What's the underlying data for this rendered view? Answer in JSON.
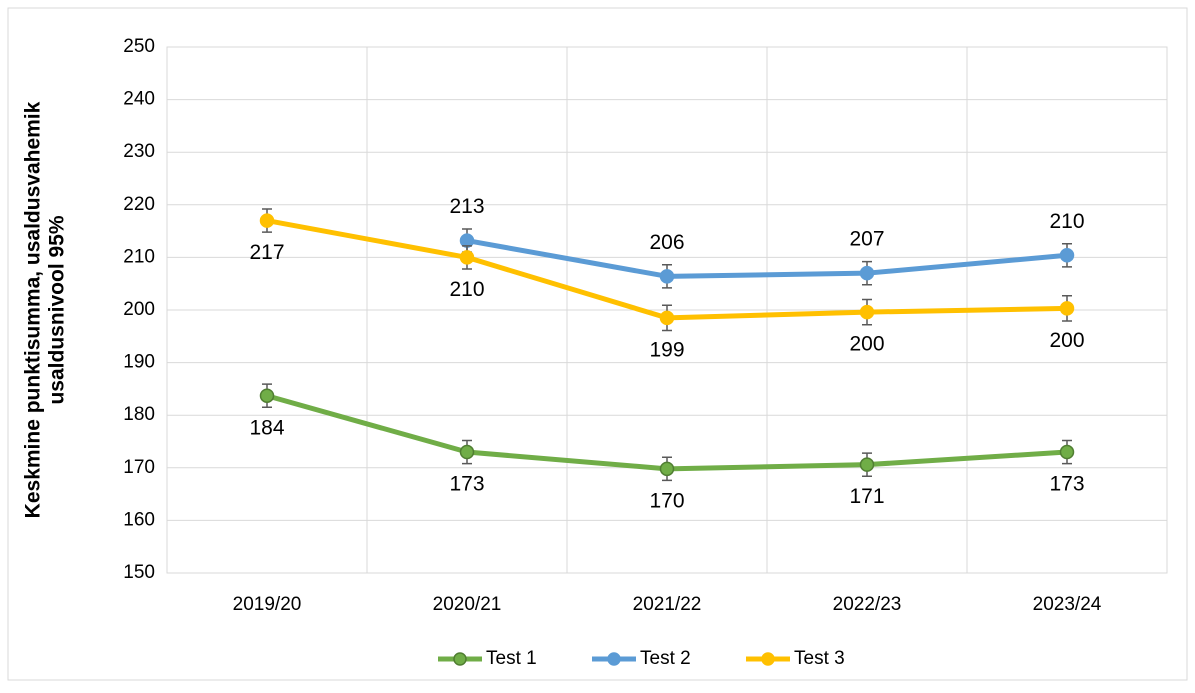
{
  "chart_data": {
    "type": "line",
    "ylabel": [
      "Keskmine punktisumma, usaldusvahemik",
      "usaldusnivool 95%"
    ],
    "categories": [
      "2019/20",
      "2020/21",
      "2021/22",
      "2022/23",
      "2023/24"
    ],
    "ylim": [
      150,
      250
    ],
    "yticks": [
      150,
      160,
      170,
      180,
      190,
      200,
      210,
      220,
      230,
      240,
      250
    ],
    "grid": true,
    "legend": "bottom",
    "series": [
      {
        "name": "Test 1",
        "color": "#70ad47",
        "label_position": "below",
        "values": [
          183.7,
          173,
          169.8,
          170.6,
          173
        ],
        "errors": [
          2.2,
          2.2,
          2.2,
          2.2,
          2.2
        ],
        "value_labels": [
          "184",
          "173",
          "170",
          "171",
          "173"
        ]
      },
      {
        "name": "Test 2",
        "color": "#5b9bd5",
        "label_position": "above",
        "values": [
          null,
          213.2,
          206.4,
          207,
          210.4
        ],
        "errors": [
          null,
          2.2,
          2.2,
          2.2,
          2.2
        ],
        "value_labels": [
          null,
          "213",
          "206",
          "207",
          "210"
        ]
      },
      {
        "name": "Test 3",
        "color": "#ffc000",
        "label_position": "below",
        "values": [
          217,
          210,
          198.5,
          199.6,
          200.3
        ],
        "errors": [
          2.2,
          2.2,
          2.4,
          2.4,
          2.4
        ],
        "value_labels": [
          "217",
          "210",
          "199",
          "200",
          "200"
        ]
      }
    ]
  }
}
